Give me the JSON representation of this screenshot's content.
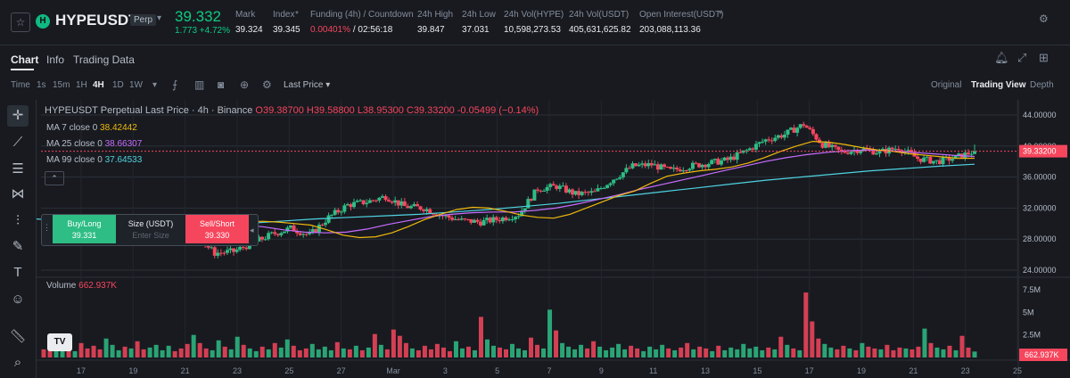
{
  "header": {
    "symbol": "HYPEUSDT",
    "contract_badge": "Perp",
    "last_price": "39.332",
    "change": "1.773 +4.72%",
    "stats": [
      {
        "label": "Mark",
        "value": "39.324"
      },
      {
        "label": "Index",
        "value": "39.345"
      },
      {
        "label": "Funding (4h) / Countdown",
        "value_rate": "0.00401%",
        "value_countdown": " / 02:56:18"
      },
      {
        "label": "24h High",
        "value": "39.847"
      },
      {
        "label": "24h Low",
        "value": "37.031"
      },
      {
        "label": "24h Vol(HYPE)",
        "value": "10,598,273.53"
      },
      {
        "label": "24h Vol(USDT)",
        "value": "405,631,625.82"
      },
      {
        "label": "Open Interest(USDT)",
        "value": "203,088,113.36"
      }
    ]
  },
  "tabs": [
    "Chart",
    "Info",
    "Trading Data"
  ],
  "toolbar": {
    "time_label": "Time",
    "intervals": [
      "1s",
      "15m",
      "1H",
      "4H",
      "1D",
      "1W"
    ],
    "active_interval": "4H",
    "price_type": "Last Price",
    "views": [
      "Original",
      "Trading View",
      "Depth"
    ],
    "active_view": "Trading View"
  },
  "legend": {
    "title": "HYPEUSDT Perpetual Last Price · 4h · Binance",
    "open": "O39.38700",
    "high": "H39.58800",
    "low": "L38.95300",
    "close": "C39.33200",
    "change": "-0.05499 (−0.14%)",
    "ma7_label": "MA 7 close 0",
    "ma7_value": "38.42442",
    "ma25_label": "MA 25 close 0",
    "ma25_value": "38.66307",
    "ma99_label": "MA 99 close 0",
    "ma99_value": "37.64533"
  },
  "trade_panel": {
    "buy_label": "Buy/Long",
    "buy_price": "39.331",
    "size_label": "Size (USDT)",
    "size_placeholder": "Enter Size",
    "sell_label": "Sell/Short",
    "sell_price": "39.330"
  },
  "volume": {
    "label": "Volume",
    "value": "662.937K"
  },
  "colors": {
    "up": "#2ebd85",
    "down": "#f6465d",
    "ma7": "#f0b90b",
    "ma25": "#c86cff",
    "ma99": "#4fd3e0"
  },
  "chart_data": {
    "type": "candlestick",
    "price_axis_ticks": [
      "44.00000",
      "40.00000",
      "36.00000",
      "32.00000",
      "28.00000",
      "24.00000"
    ],
    "price_ylim": [
      24,
      44
    ],
    "current_price_label": "39.33200",
    "volume_axis_ticks": [
      "7.5M",
      "5M",
      "2.5M"
    ],
    "volume_ylim": [
      0,
      8000000
    ],
    "current_volume_label": "662.937K",
    "x_ticks": [
      "17",
      "19",
      "21",
      "23",
      "25",
      "27",
      "Mar",
      "3",
      "5",
      "7",
      "9",
      "11",
      "13",
      "15",
      "17",
      "19",
      "21",
      "23",
      "25"
    ],
    "daily_closes": [
      30.2,
      30.5,
      30.0,
      29.6,
      30.1,
      30.3,
      29.8,
      29.4,
      28.5,
      26.2,
      26.4,
      27.5,
      28.6,
      29.4,
      28.5,
      30.8,
      32.4,
      32.8,
      33.5,
      32.2,
      32.0,
      31.0,
      30.4,
      30.2,
      30.6,
      31.2,
      34.5,
      34.8,
      33.8,
      34.0,
      35.8,
      37.4,
      37.6,
      36.8,
      37.4,
      37.8,
      38.2,
      39.4,
      40.8,
      41.5,
      42.8,
      40.2,
      39.2,
      39.6,
      39.2,
      39.8,
      38.4,
      38.0,
      38.5,
      39.33
    ],
    "ma7": [
      30.2,
      30.3,
      30.2,
      30.0,
      29.8,
      29.2,
      28.5,
      28.2,
      28.3,
      28.8,
      29.6,
      30.5,
      31.2,
      31.8,
      32.1,
      32.0,
      31.6,
      31.1,
      30.8,
      30.7,
      31.2,
      32.0,
      32.8,
      33.6,
      34.2,
      35.2,
      36.1,
      36.5,
      36.8,
      37.0,
      37.3,
      37.8,
      38.5,
      39.3,
      40.0,
      40.6,
      40.5,
      40.2,
      39.8,
      39.5,
      39.3,
      39.0,
      38.8,
      38.6,
      38.4,
      38.42
    ],
    "ma25": [
      29.8,
      29.6,
      29.2,
      28.9,
      28.8,
      28.9,
      29.3,
      29.9,
      30.4,
      30.9,
      31.2,
      31.4,
      31.5,
      31.5,
      31.7,
      32.0,
      32.5,
      33.1,
      33.7,
      34.4,
      35.0,
      35.6,
      36.2,
      36.8,
      37.4,
      38.0,
      38.5,
      38.9,
      39.2,
      39.4,
      39.5,
      39.4,
      39.2,
      39.0,
      38.8,
      38.66
    ],
    "ma99": [
      30.6,
      30.3,
      30.0,
      29.8,
      29.7,
      29.8,
      30.0,
      30.3,
      30.6,
      30.8,
      31.0,
      31.2,
      31.5,
      31.8,
      32.2,
      32.6,
      33.1,
      33.6,
      34.1,
      34.6,
      35.1,
      35.6,
      36.0,
      36.4,
      36.8,
      37.1,
      37.4,
      37.65
    ],
    "volumes_millions": [
      0.9,
      1.2,
      0.8,
      1.5,
      1.1,
      0.7,
      1.6,
      1.0,
      1.3,
      0.9,
      2.1,
      1.4,
      0.8,
      1.2,
      1.0,
      1.8,
      0.9,
      1.1,
      1.4,
      0.8,
      1.3,
      0.7,
      1.0,
      1.5,
      2.5,
      1.6,
      1.0,
      0.8,
      1.9,
      1.2,
      0.9,
      2.3,
      1.4,
      1.0,
      0.7,
      1.2,
      0.9,
      1.6,
      1.1,
      2.0,
      1.3,
      0.8,
      1.0,
      1.5,
      0.9,
      1.2,
      0.8,
      1.7,
      1.0,
      0.9,
      1.3,
      0.8,
      1.1,
      2.6,
      1.4,
      0.9,
      3.1,
      2.4,
      1.6,
      1.0,
      0.8,
      1.3,
      0.9,
      1.5,
      1.1,
      0.7,
      1.8,
      1.0,
      1.2,
      0.8,
      4.5,
      2.0,
      1.3,
      1.1,
      0.9,
      1.5,
      1.0,
      0.8,
      2.2,
      1.4,
      1.0,
      5.3,
      3.0,
      1.6,
      1.2,
      0.9,
      1.4,
      1.0,
      1.8,
      1.2,
      0.8,
      1.1,
      1.5,
      0.9,
      1.3,
      1.0,
      0.7,
      1.2,
      0.9,
      1.4,
      1.0,
      0.8,
      1.1,
      1.6,
      0.9,
      1.2,
      1.0,
      0.7,
      1.3,
      0.8,
      1.1,
      0.9,
      1.5,
      1.0,
      1.2,
      0.8,
      1.1,
      0.9,
      2.3,
      1.4,
      1.0,
      0.8,
      7.2,
      4.0,
      2.1,
      1.5,
      1.1,
      0.9,
      1.3,
      1.0,
      0.8,
      1.6,
      1.2,
      1.0,
      0.9,
      1.4,
      0.8,
      1.1,
      1.0,
      0.9,
      1.2,
      3.2,
      1.6,
      1.1,
      0.9,
      1.3,
      0.8,
      2.4,
      1.1,
      0.66
    ]
  }
}
